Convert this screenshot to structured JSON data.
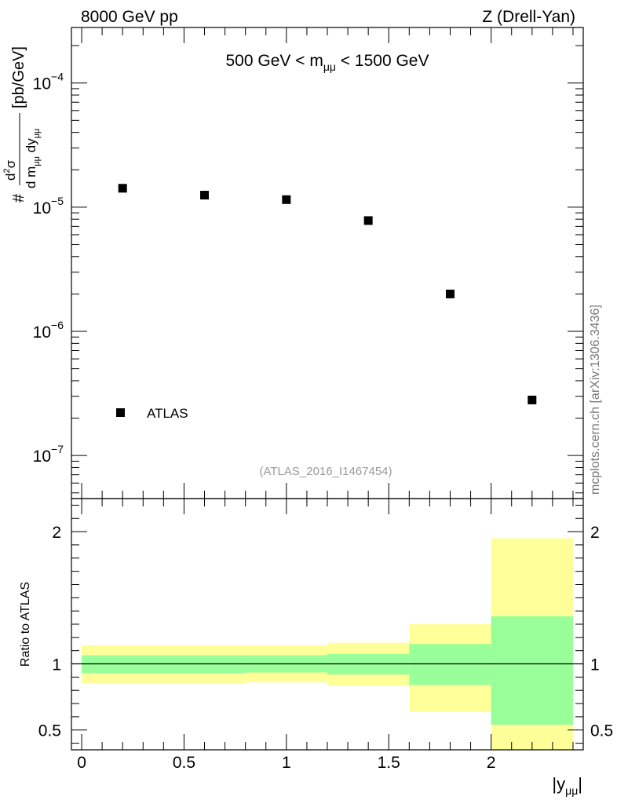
{
  "header": {
    "left": "8000 GeV pp",
    "right": "Z (Drell-Yan)"
  },
  "side_label": "mcplots.cern.ch [arXiv:1306.3436]",
  "reference_label": "(ATLAS_2016_I1467454)",
  "chart_data": [
    {
      "type": "scatter",
      "title": "500 GeV < m_μμ < 1500 GeV",
      "ylabel": "# d²σ / d m_μμ dy_μμ [pb/GeV]",
      "xlabel": "|y_μμ|",
      "y_scale": "log",
      "xlim": [
        -0.05,
        2.45
      ],
      "ylim": [
        4.5e-08,
        0.00028
      ],
      "y_ticks": [
        {
          "value": 0.0001,
          "mant": "10",
          "exp": "−4"
        },
        {
          "value": 1e-05,
          "mant": "10",
          "exp": "−5"
        },
        {
          "value": 1e-06,
          "mant": "10",
          "exp": "−6"
        },
        {
          "value": 1e-07,
          "mant": "10",
          "exp": "−7"
        }
      ],
      "legend": {
        "position": "bottom-left",
        "entries": [
          "ATLAS"
        ]
      },
      "series": [
        {
          "name": "ATLAS",
          "marker": "square",
          "color": "#000000",
          "x": [
            0.2,
            0.6,
            1.0,
            1.4,
            1.8,
            2.2
          ],
          "y": [
            1.42e-05,
            1.25e-05,
            1.15e-05,
            7.8e-06,
            2e-06,
            2.8e-07
          ]
        }
      ]
    },
    {
      "type": "area",
      "ylabel": "Ratio to ATLAS",
      "xlabel": "|y_μμ|",
      "xlim": [
        -0.05,
        2.45
      ],
      "ylim": [
        0.35,
        2.25
      ],
      "x_ticks": [
        "0",
        "0.5",
        "1",
        "1.5",
        "2"
      ],
      "y_ticks": [
        "0.5",
        "1",
        "2"
      ],
      "reference_line": 1,
      "bins": [
        {
          "x0": 0.0,
          "x1": 0.8,
          "stat_lo": 0.93,
          "stat_hi": 1.065,
          "tot_lo": 0.855,
          "tot_hi": 1.14
        },
        {
          "x0": 0.8,
          "x1": 1.2,
          "stat_lo": 0.935,
          "stat_hi": 1.065,
          "tot_lo": 0.86,
          "tot_hi": 1.14
        },
        {
          "x0": 1.2,
          "x1": 1.6,
          "stat_lo": 0.92,
          "stat_hi": 1.075,
          "tot_lo": 0.835,
          "tot_hi": 1.16
        },
        {
          "x0": 1.6,
          "x1": 2.0,
          "stat_lo": 0.84,
          "stat_hi": 1.15,
          "tot_lo": 0.635,
          "tot_hi": 1.3
        },
        {
          "x0": 2.0,
          "x1": 2.4,
          "stat_lo": 0.54,
          "stat_hi": 1.36,
          "tot_lo": 0.35,
          "tot_hi": 1.95
        }
      ],
      "colors": {
        "total": "#ffff99",
        "stat": "#99ff99",
        "line": "#000000"
      }
    }
  ]
}
